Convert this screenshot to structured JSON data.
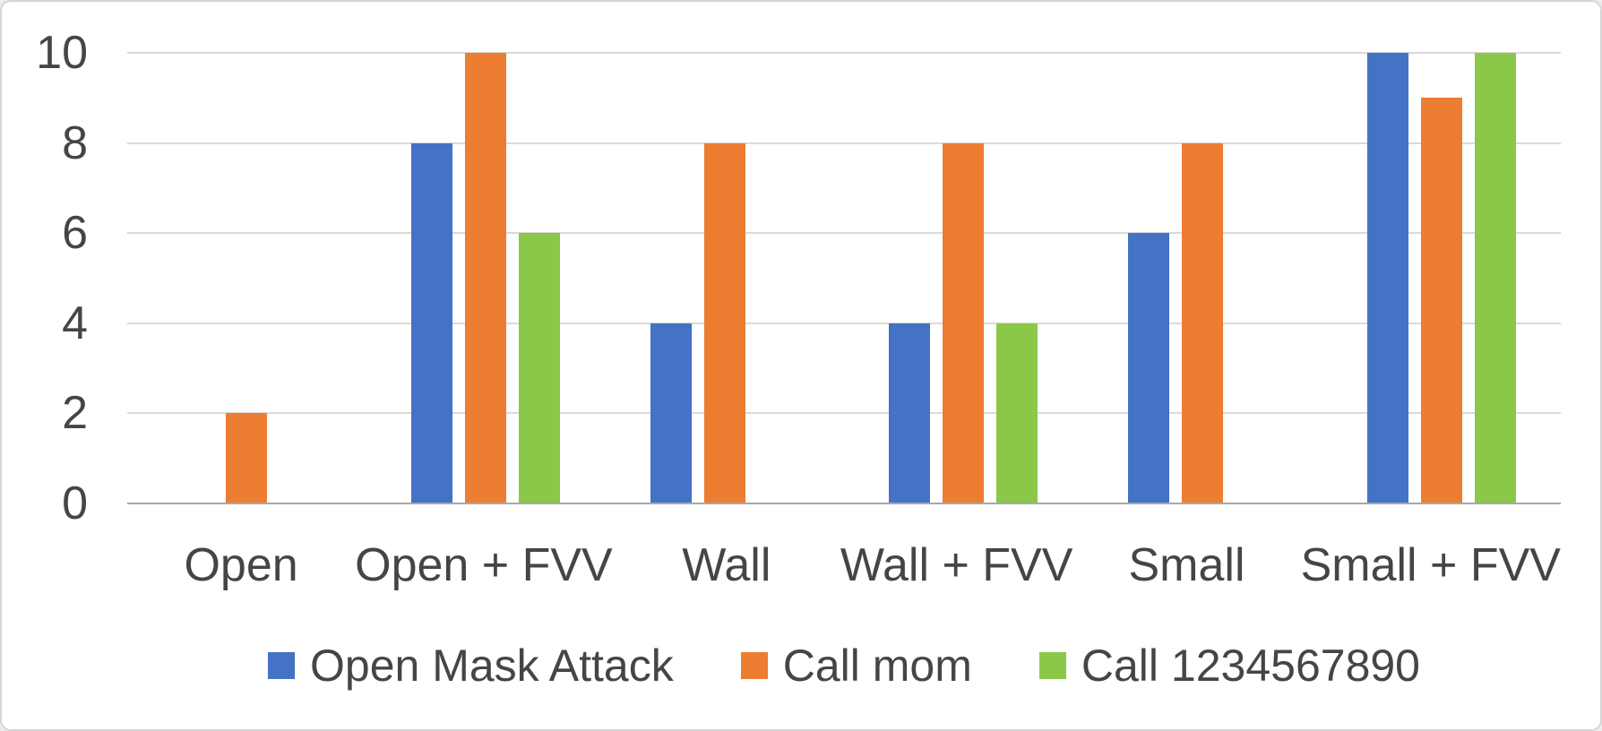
{
  "chart_data": {
    "type": "bar",
    "title": "",
    "categories": [
      "Open",
      "Open + FVV",
      "Wall",
      "Wall + FVV",
      "Small",
      "Small + FVV"
    ],
    "series": [
      {
        "name": "Open Mask Attack",
        "color": "#4472C4",
        "values": [
          0,
          8,
          4,
          4,
          6,
          10
        ]
      },
      {
        "name": "Call mom",
        "color": "#ED7D31",
        "values": [
          2,
          10,
          8,
          8,
          8,
          9
        ]
      },
      {
        "name": "Call 1234567890",
        "color": "#8BC84A",
        "values": [
          0,
          6,
          0,
          4,
          0,
          10
        ]
      }
    ],
    "xlabel": "",
    "ylabel": "",
    "ylim": [
      0,
      10
    ],
    "yticks": [
      0,
      2,
      4,
      6,
      8,
      10
    ],
    "grid": true,
    "legend_position": "bottom",
    "plot_background": "#ffffff",
    "gridline_color": "#dadada",
    "axis_line_color": "#a8a8a8",
    "text_color": "#454545"
  }
}
